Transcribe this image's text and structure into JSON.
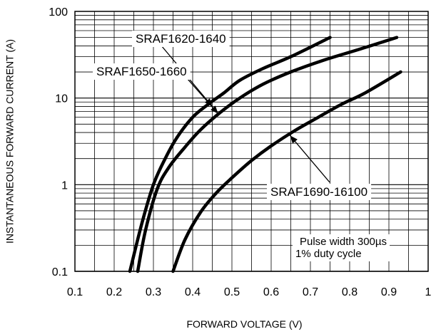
{
  "chart_data": {
    "type": "line",
    "xlabel": "FORWARD VOLTAGE (V)",
    "ylabel": "INSTANTANEOUS FORWARD CURRENT (A)",
    "x_scale": "linear",
    "y_scale": "log",
    "xlim": [
      0.1,
      1.0
    ],
    "ylim": [
      0.1,
      100
    ],
    "x_ticks": [
      "0.1",
      "0.2",
      "0.3",
      "0.4",
      "0.5",
      "0.6",
      "0.7",
      "0.8",
      "0.9",
      "1"
    ],
    "y_ticks": [
      "0.1",
      "1",
      "10",
      "100"
    ],
    "grid": true,
    "annotation": [
      "Pulse width 300µs",
      "1% duty cycle"
    ],
    "series": [
      {
        "name": "SRAF1620-1640",
        "x": [
          0.24,
          0.27,
          0.3,
          0.33,
          0.36,
          0.4,
          0.44,
          0.48,
          0.52,
          0.58,
          0.65,
          0.75
        ],
        "y": [
          0.1,
          0.35,
          1.0,
          2.0,
          3.5,
          6.0,
          8.5,
          11.5,
          16.0,
          22.0,
          30.0,
          50.0
        ]
      },
      {
        "name": "SRAF1650-1660",
        "x": [
          0.26,
          0.28,
          0.31,
          0.34,
          0.38,
          0.42,
          0.47,
          0.52,
          0.58,
          0.65,
          0.73,
          0.82,
          0.92
        ],
        "y": [
          0.1,
          0.3,
          0.9,
          1.6,
          2.7,
          4.3,
          6.8,
          10.0,
          14.5,
          20.0,
          27.0,
          36.0,
          50.0
        ]
      },
      {
        "name": "SRAF1690-16100",
        "x": [
          0.35,
          0.38,
          0.42,
          0.46,
          0.5,
          0.55,
          0.6,
          0.66,
          0.72,
          0.78,
          0.84,
          0.93
        ],
        "y": [
          0.1,
          0.23,
          0.48,
          0.8,
          1.2,
          1.9,
          2.8,
          4.2,
          6.0,
          8.5,
          11.5,
          20.0
        ]
      }
    ]
  }
}
